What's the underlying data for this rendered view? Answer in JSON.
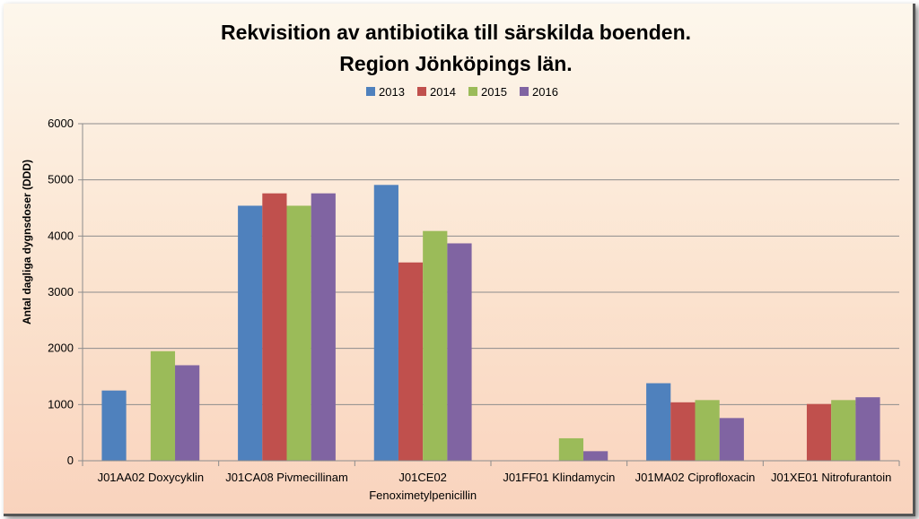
{
  "chart_data": {
    "type": "bar",
    "title_lines": [
      "Rekvisition av antibiotika till särskilda boenden.",
      "Region Jönköpings län."
    ],
    "ylabel": "Antal dagliga dygnsdoser (DDD)",
    "xlabel": "",
    "ylim": [
      0,
      6000
    ],
    "yticks": [
      0,
      1000,
      2000,
      3000,
      4000,
      5000,
      6000
    ],
    "grid": true,
    "legend_position": "top-center",
    "categories": [
      [
        "J01AA02 Doxycyklin"
      ],
      [
        "J01CA08 Pivmecillinam"
      ],
      [
        "J01CE02",
        "Fenoximetylpenicillin"
      ],
      [
        "J01FF01 Klindamycin"
      ],
      [
        "J01MA02 Ciprofloxacin"
      ],
      [
        "J01XE01 Nitrofurantoin"
      ]
    ],
    "series": [
      {
        "name": "2013",
        "color": "#4f81bd",
        "values": [
          1250,
          4540,
          4910,
          0,
          1380,
          0
        ]
      },
      {
        "name": "2014",
        "color": "#c0504d",
        "values": [
          0,
          4760,
          3530,
          0,
          1040,
          1010
        ]
      },
      {
        "name": "2015",
        "color": "#9bbb59",
        "values": [
          1950,
          4540,
          4090,
          400,
          1080,
          1080
        ]
      },
      {
        "name": "2016",
        "color": "#8064a2",
        "values": [
          1700,
          4760,
          3870,
          170,
          760,
          1130
        ]
      }
    ]
  }
}
